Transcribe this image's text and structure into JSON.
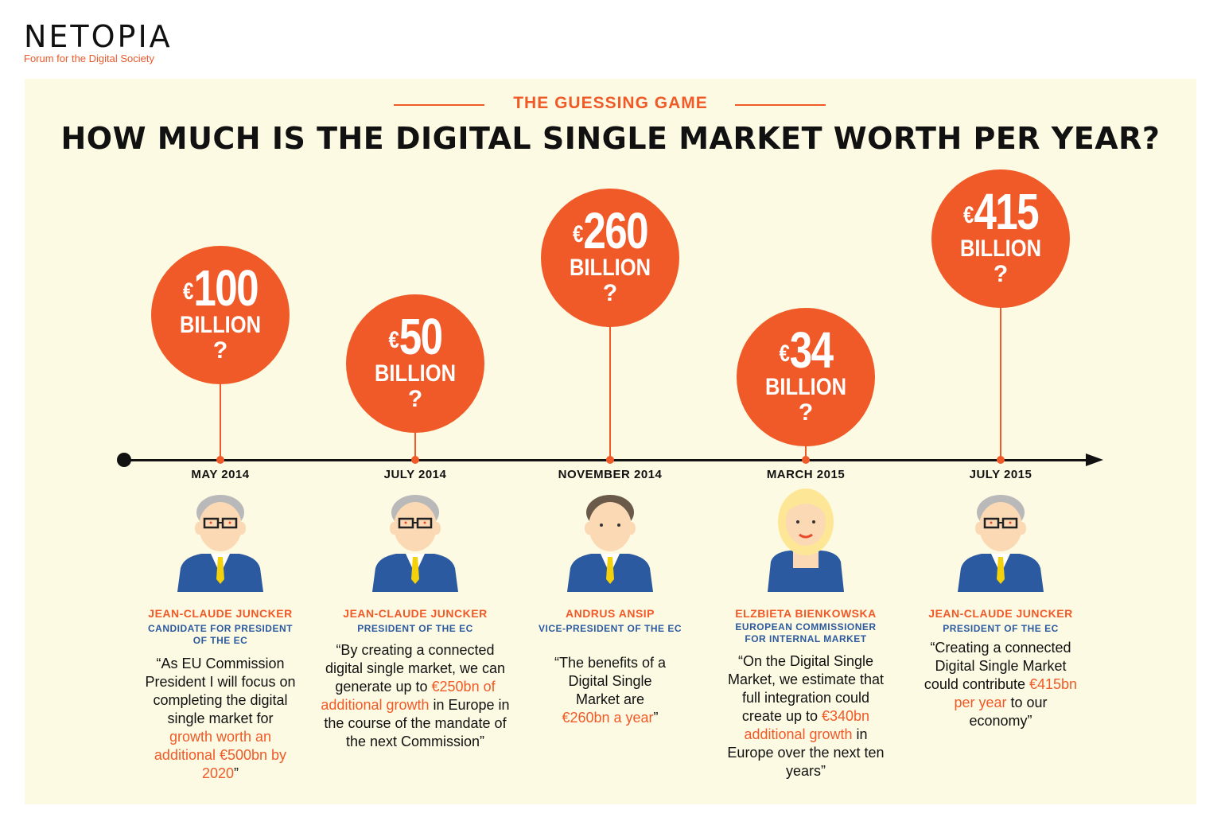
{
  "logo": {
    "name": "NETOPIA",
    "tagline": "Forum for the Digital Society"
  },
  "header": {
    "kicker": "THE GUESSING GAME",
    "title": "HOW MUCH IS THE DIGITAL SINGLE MARKET WORTH PER YEAR?"
  },
  "events": [
    {
      "amount": "100",
      "currency": "€",
      "unit": "BILLION",
      "q": "?",
      "date": "MAY 2014",
      "name": "JEAN-CLAUDE JUNCKER",
      "role": "CANDIDATE FOR PRESIDENT OF THE EC",
      "quote_pre": "“As EU Commission President I will focus on completing the digital single market for ",
      "quote_hl": "growth worth an additional €500bn by 2020",
      "quote_post": "”",
      "person": "man-grey-hair-glasses"
    },
    {
      "amount": "50",
      "currency": "€",
      "unit": "BILLION",
      "q": "?",
      "date": "JULY 2014",
      "name": "JEAN-CLAUDE JUNCKER",
      "role": "PRESIDENT OF THE EC",
      "quote_pre": "“By creating a connected digital single market, we can generate up to ",
      "quote_hl": "€250bn of additional growth",
      "quote_post": " in Europe in the course of the mandate of the next Commission”",
      "person": "man-grey-hair-glasses"
    },
    {
      "amount": "260",
      "currency": "€",
      "unit": "BILLION",
      "q": "?",
      "date": "NOVEMBER 2014",
      "name": "ANDRUS ANSIP",
      "role": "VICE-PRESIDENT OF THE EC",
      "quote_pre": "“The benefits of a Digital Single Market are ",
      "quote_hl": "€260bn a year",
      "quote_post": "”",
      "person": "man-brown-hair"
    },
    {
      "amount": "34",
      "currency": "€",
      "unit": "BILLION",
      "q": "?",
      "date": "MARCH 2015",
      "name": "ELZBIETA BIENKOWSKA",
      "role": "EUROPEAN COMMISSIONER FOR INTERNAL MARKET",
      "quote_pre": "“On the Digital Single Market, we estimate that full integration could create up to ",
      "quote_hl": "€340bn  additional growth",
      "quote_post": " in Europe over the next ten years”",
      "person": "woman-blonde"
    },
    {
      "amount": "415",
      "currency": "€",
      "unit": "BILLION",
      "q": "?",
      "date": "JULY 2015",
      "name": "JEAN-CLAUDE JUNCKER",
      "role": "PRESIDENT OF THE EC",
      "quote_pre": "“Creating a connected Digital Single Market could contribute ",
      "quote_hl": "€415bn per year",
      "quote_post": " to our economy”",
      "person": "man-grey-hair-glasses"
    }
  ],
  "colors": {
    "accent": "#f05a28",
    "panel": "#fdfae3",
    "suit": "#2c5aa0",
    "role_text": "#2c5aa0"
  }
}
